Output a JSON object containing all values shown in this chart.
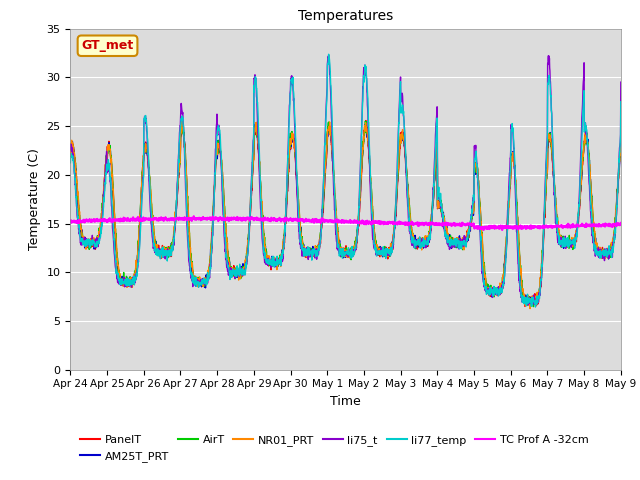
{
  "title": "Temperatures",
  "xlabel": "Time",
  "ylabel": "Temperature (C)",
  "ylim": [
    0,
    35
  ],
  "yticks": [
    0,
    5,
    10,
    15,
    20,
    25,
    30,
    35
  ],
  "bg_color": "#dcdcdc",
  "annotation_text": "GT_met",
  "annotation_text_color": "#cc0000",
  "series": [
    {
      "name": "PanelT",
      "color": "#ff0000",
      "lw": 1.0
    },
    {
      "name": "AM25T_PRT",
      "color": "#0000cc",
      "lw": 1.0
    },
    {
      "name": "AirT",
      "color": "#00cc00",
      "lw": 1.0
    },
    {
      "name": "NR01_PRT",
      "color": "#ff8800",
      "lw": 1.0
    },
    {
      "name": "li75_t",
      "color": "#8800cc",
      "lw": 1.0
    },
    {
      "name": "li77_temp",
      "color": "#00cccc",
      "lw": 1.0
    },
    {
      "name": "TC Prof A -32cm",
      "color": "#ff00ff",
      "lw": 1.5
    }
  ],
  "xticklabels": [
    "Apr 24",
    "Apr 25",
    "Apr 26",
    "Apr 27",
    "Apr 28",
    "Apr 29",
    "Apr 30",
    "May 1",
    "May 2",
    "May 3",
    "May 4",
    "May 5",
    "May 6",
    "May 7",
    "May 8",
    "May 9"
  ],
  "n_days": 15,
  "pts_per_day": 144,
  "base_temp": 15.0,
  "night_min": 8.5,
  "tc_prof_base": 15.2,
  "tc_prof_amp": 0.3
}
